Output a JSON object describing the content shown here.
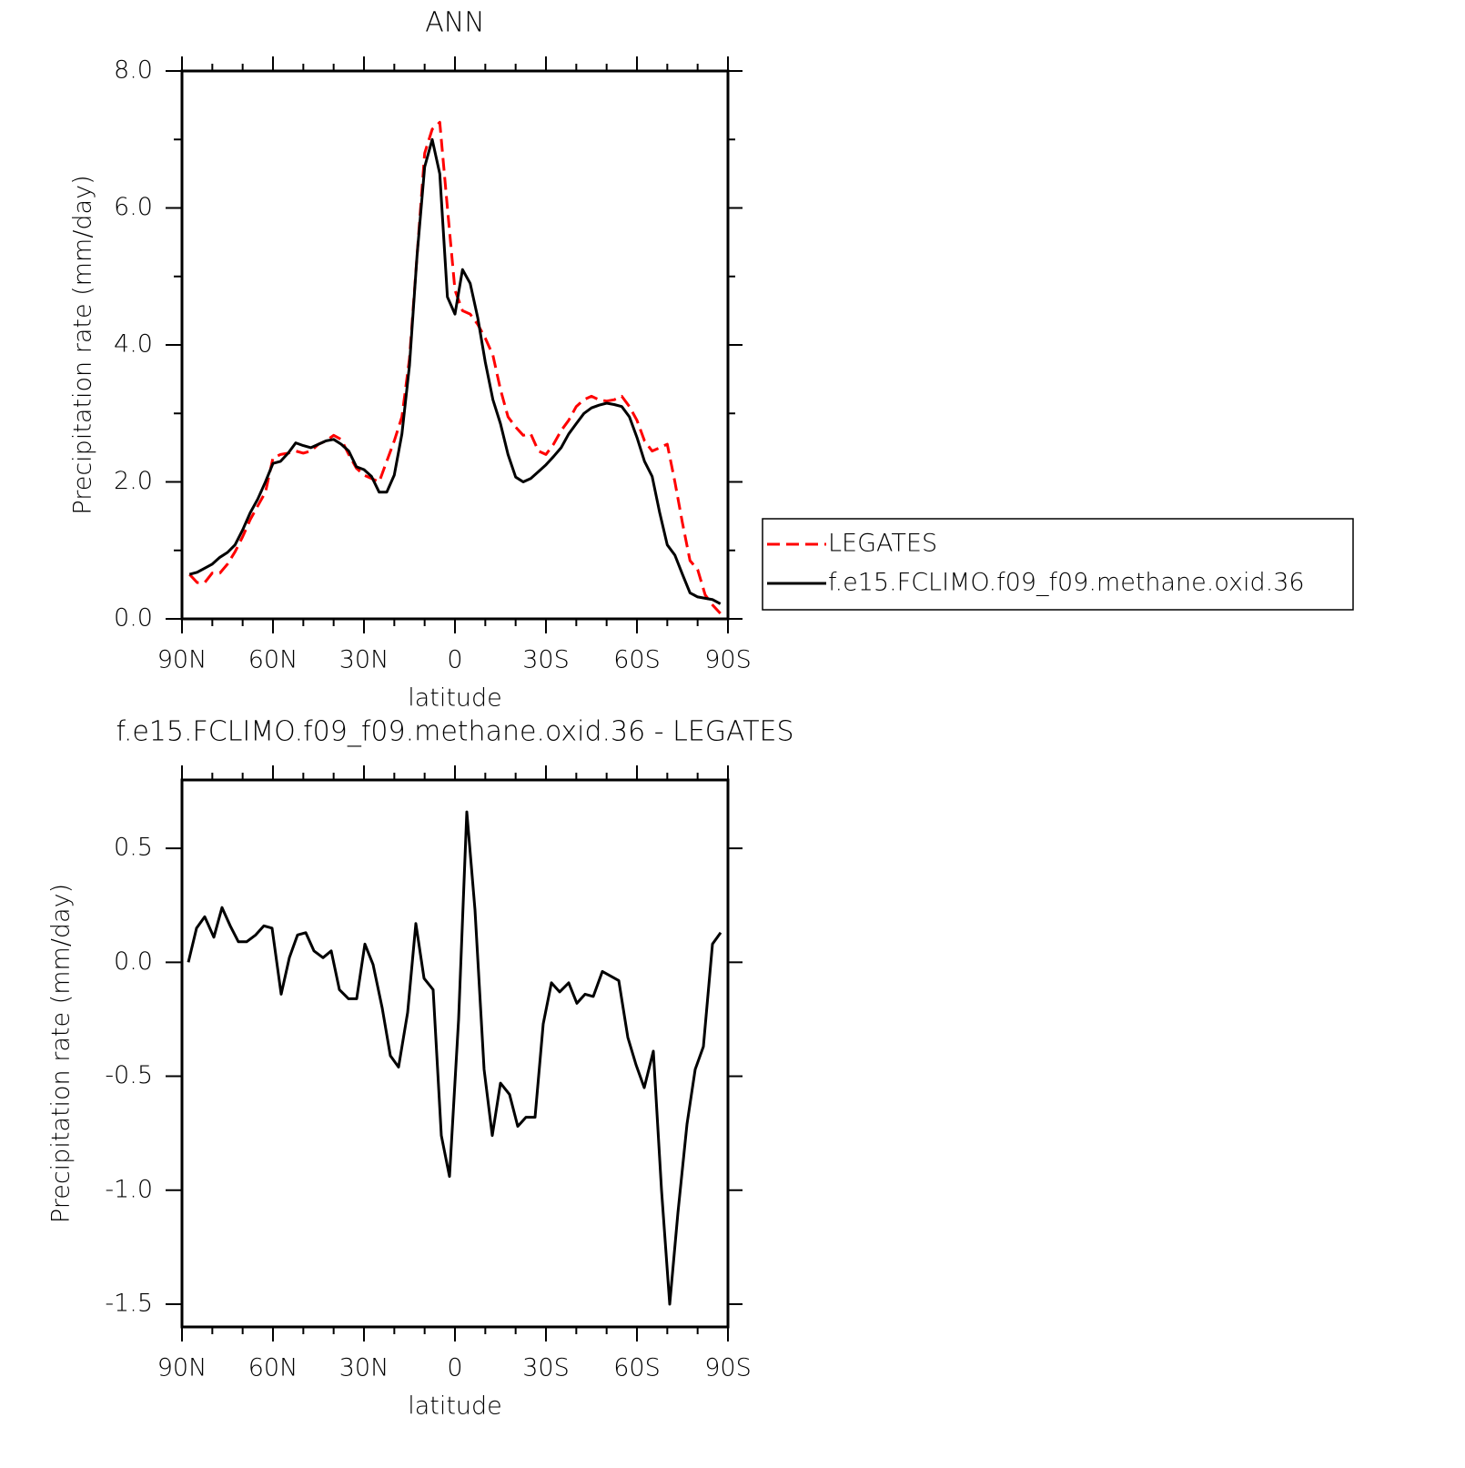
{
  "chart_data": [
    {
      "type": "line",
      "title": "ANN",
      "xlabel": "latitude",
      "ylabel": "Precipitation rate (mm/day)",
      "x": [
        87.5,
        85,
        82.5,
        80,
        77.5,
        75,
        72.5,
        70,
        67.5,
        65,
        62.5,
        60,
        57.5,
        55,
        52.5,
        50,
        47.5,
        45,
        42.5,
        40,
        37.5,
        35,
        32.5,
        30,
        27.5,
        25,
        22.5,
        20,
        17.5,
        15,
        12.5,
        10,
        7.5,
        5,
        2.5,
        0,
        -2.5,
        -5,
        -7.5,
        -10,
        -12.5,
        -15,
        -17.5,
        -20,
        -22.5,
        -25,
        -27.5,
        -30,
        -32.5,
        -35,
        -37.5,
        -40,
        -42.5,
        -45,
        -47.5,
        -50,
        -52.5,
        -55,
        -57.5,
        -60,
        -62.5,
        -65,
        -67.5,
        -70,
        -72.5,
        -75,
        -77.5,
        -80,
        -82.5,
        -85,
        -87.5
      ],
      "series": [
        {
          "name": "LEGATES",
          "color": "#ff0000",
          "dashed": true,
          "values": [
            0.65,
            0.53,
            0.53,
            0.67,
            0.67,
            0.8,
            0.98,
            1.2,
            1.45,
            1.65,
            1.85,
            2.35,
            2.4,
            2.42,
            2.45,
            2.42,
            2.45,
            2.55,
            2.6,
            2.68,
            2.62,
            2.4,
            2.2,
            2.1,
            2.05,
            2.0,
            2.3,
            2.6,
            2.95,
            3.8,
            5.3,
            6.8,
            7.15,
            7.25,
            6.0,
            4.8,
            4.5,
            4.45,
            4.3,
            4.1,
            3.85,
            3.35,
            2.95,
            2.8,
            2.68,
            2.7,
            2.45,
            2.4,
            2.55,
            2.75,
            2.9,
            3.1,
            3.2,
            3.25,
            3.2,
            3.18,
            3.2,
            3.25,
            3.1,
            2.9,
            2.6,
            2.45,
            2.5,
            2.55,
            2.0,
            1.4,
            0.85,
            0.72,
            0.35,
            0.2,
            0.08
          ]
        },
        {
          "name": "f.e15.FCLIMO.f09_f09.methane.oxid.36",
          "color": "#000000",
          "dashed": false,
          "values": [
            0.65,
            0.68,
            0.74,
            0.8,
            0.9,
            0.97,
            1.08,
            1.3,
            1.55,
            1.75,
            2.0,
            2.27,
            2.3,
            2.42,
            2.57,
            2.53,
            2.5,
            2.55,
            2.6,
            2.62,
            2.55,
            2.45,
            2.22,
            2.18,
            2.08,
            1.85,
            1.85,
            2.1,
            2.7,
            3.7,
            5.3,
            6.6,
            7.0,
            6.5,
            4.7,
            4.45,
            5.1,
            4.9,
            4.4,
            3.75,
            3.2,
            2.85,
            2.4,
            2.07,
            2.0,
            2.05,
            2.15,
            2.25,
            2.37,
            2.5,
            2.7,
            2.85,
            3.0,
            3.08,
            3.12,
            3.15,
            3.13,
            3.1,
            2.95,
            2.65,
            2.3,
            2.08,
            1.55,
            1.08,
            0.93,
            0.65,
            0.38,
            0.32,
            0.3,
            0.28,
            0.22
          ]
        }
      ],
      "xlim": [
        90,
        -90
      ],
      "xticks": [
        {
          "value": 90,
          "label": "90N"
        },
        {
          "value": 60,
          "label": "60N"
        },
        {
          "value": 30,
          "label": "30N"
        },
        0,
        {
          "value": -30,
          "label": "30S"
        },
        {
          "value": -60,
          "label": "60S"
        },
        {
          "value": -90,
          "label": "90S"
        }
      ],
      "xminorticks": [
        80,
        70,
        50,
        40,
        20,
        10,
        -10,
        -20,
        -40,
        -50,
        -70,
        -80
      ],
      "ylim": [
        0,
        8
      ],
      "yticks": [
        {
          "value": 0,
          "label": "0.0"
        },
        {
          "value": 2,
          "label": "2.0"
        },
        {
          "value": 4,
          "label": "4.0"
        },
        {
          "value": 6,
          "label": "6.0"
        },
        {
          "value": 8,
          "label": "8.0"
        }
      ],
      "yminorticks": [
        1,
        3,
        5,
        7
      ],
      "legend": "right"
    },
    {
      "type": "line",
      "title": "f.e15.FCLIMO.f09_f09.methane.oxid.36 - LEGATES",
      "xlabel": "latitude",
      "ylabel": "Precipitation rate (mm/day)",
      "color": "#000000",
      "x": [
        87.9,
        85.2,
        82.5,
        79.5,
        76.8,
        74.1,
        71.4,
        68.7,
        65.7,
        63.0,
        60.3,
        57.3,
        54.6,
        51.9,
        49.2,
        46.5,
        43.5,
        40.8,
        38.1,
        35.1,
        32.4,
        29.7,
        27.0,
        24.0,
        21.3,
        18.6,
        15.6,
        12.9,
        10.2,
        7.2,
        4.5,
        1.8,
        -1.2,
        -3.9,
        -6.6,
        -9.6,
        -12.3,
        -15.0,
        -18.0,
        -20.7,
        -23.4,
        -26.4,
        -29.1,
        -31.8,
        -34.5,
        -37.5,
        -40.2,
        -42.9,
        -45.6,
        -48.6,
        -51.3,
        -54.0,
        -57.0,
        -59.7,
        -62.4,
        -65.4,
        -68.1,
        -70.8,
        -73.5,
        -76.5,
        -79.2,
        -81.9,
        -84.9,
        -87.6
      ],
      "values": [
        0.0,
        0.15,
        0.2,
        0.11,
        0.24,
        0.16,
        0.09,
        0.09,
        0.12,
        0.16,
        0.15,
        -0.14,
        0.02,
        0.12,
        0.13,
        0.05,
        0.02,
        0.05,
        -0.12,
        -0.16,
        -0.16,
        0.08,
        -0.01,
        -0.2,
        -0.41,
        -0.46,
        -0.22,
        0.17,
        -0.07,
        -0.12,
        -0.76,
        -0.94,
        -0.25,
        0.66,
        0.23,
        -0.47,
        -0.76,
        -0.53,
        -0.58,
        -0.72,
        -0.68,
        -0.68,
        -0.27,
        -0.09,
        -0.13,
        -0.09,
        -0.18,
        -0.14,
        -0.15,
        -0.04,
        -0.06,
        -0.08,
        -0.33,
        -0.45,
        -0.55,
        -0.39,
        -1.0,
        -1.5,
        -1.1,
        -0.71,
        -0.47,
        -0.37,
        0.08,
        0.13
      ],
      "xlim": [
        90,
        -90
      ],
      "xticks": [
        {
          "value": 90,
          "label": "90N"
        },
        {
          "value": 60,
          "label": "60N"
        },
        {
          "value": 30,
          "label": "30N"
        },
        0,
        {
          "value": -30,
          "label": "30S"
        },
        {
          "value": -60,
          "label": "60S"
        },
        {
          "value": -90,
          "label": "90S"
        }
      ],
      "xminorticks": [
        80,
        70,
        50,
        40,
        20,
        10,
        -10,
        -20,
        -40,
        -50,
        -70,
        -80
      ],
      "ylim": [
        -1.6,
        0.8
      ],
      "yticks": [
        0.5,
        {
          "value": 0,
          "label": "0.0"
        },
        -0.5,
        {
          "value": -1,
          "label": "-1.0"
        },
        -1.5
      ]
    }
  ]
}
